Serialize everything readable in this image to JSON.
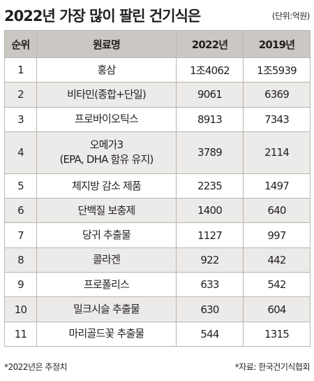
{
  "header": {
    "title": "2022년 가장 많이 팔린 건기식은",
    "unit": "(단위:억원)"
  },
  "table": {
    "columns": [
      "순위",
      "원료명",
      "2022년",
      "2019년"
    ],
    "rows": [
      {
        "rank": "1",
        "name": "홍삼",
        "y2022": "1조4062",
        "y2019": "1조5939"
      },
      {
        "rank": "2",
        "name": "비타민(종합+단일)",
        "y2022": "9061",
        "y2019": "6369"
      },
      {
        "rank": "3",
        "name": "프로바이오틱스",
        "y2022": "8913",
        "y2019": "7343"
      },
      {
        "rank": "4",
        "name": "오메가3",
        "name_line2": "(EPA, DHA 함유 유지)",
        "y2022": "3789",
        "y2019": "2114"
      },
      {
        "rank": "5",
        "name": "체지방 감소 제품",
        "y2022": "2235",
        "y2019": "1497"
      },
      {
        "rank": "6",
        "name": "단백질 보충제",
        "y2022": "1400",
        "y2019": "640"
      },
      {
        "rank": "7",
        "name": "당귀 추출물",
        "y2022": "1127",
        "y2019": "997"
      },
      {
        "rank": "8",
        "name": "콜라겐",
        "y2022": "922",
        "y2019": "442"
      },
      {
        "rank": "9",
        "name": "프로폴리스",
        "y2022": "633",
        "y2019": "542"
      },
      {
        "rank": "10",
        "name": "밀크시슬 추출물",
        "y2022": "630",
        "y2019": "604"
      },
      {
        "rank": "11",
        "name": "마리골드꽃 추출물",
        "y2022": "544",
        "y2019": "1315"
      }
    ]
  },
  "footer": {
    "note": "*2022년은 추정치",
    "source": "*자료: 한국건기식협회"
  }
}
